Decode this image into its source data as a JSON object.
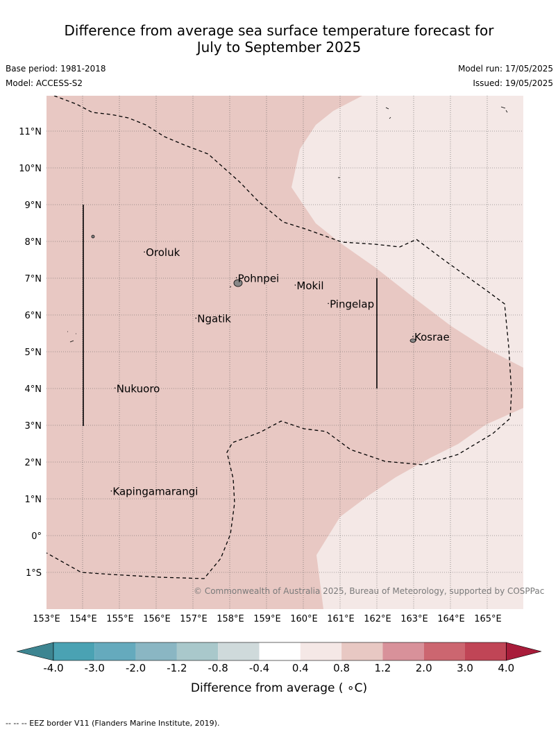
{
  "title": {
    "line1": "Difference from average sea surface temperature forecast for",
    "line2": "July to September 2025"
  },
  "meta": {
    "base_period": "Base period: 1981-2018",
    "model": "Model: ACCESS-S2",
    "model_run": "Model run: 17/05/2025",
    "issued": "Issued: 19/05/2025"
  },
  "map": {
    "lon_ticks": [
      "153°E",
      "154°E",
      "155°E",
      "156°E",
      "157°E",
      "158°E",
      "159°E",
      "160°E",
      "161°E",
      "162°E",
      "163°E",
      "164°E",
      "165°E"
    ],
    "lat_ticks": [
      "11°N",
      "10°N",
      "9°N",
      "8°N",
      "7°N",
      "6°N",
      "5°N",
      "4°N",
      "3°N",
      "2°N",
      "1°N",
      "0°",
      "1°S"
    ],
    "places": [
      {
        "name": "Oroluk",
        "lon": 155.7,
        "lat": 7.6
      },
      {
        "name": "Pohnpei",
        "lon": 158.2,
        "lat": 6.9
      },
      {
        "name": "Mokil",
        "lon": 159.8,
        "lat": 6.7
      },
      {
        "name": "Pingelap",
        "lon": 160.7,
        "lat": 6.2
      },
      {
        "name": "Ngatik",
        "lon": 157.1,
        "lat": 5.8
      },
      {
        "name": "Kosrae",
        "lon": 163.0,
        "lat": 5.3
      },
      {
        "name": "Nukuoro",
        "lon": 154.9,
        "lat": 3.9
      },
      {
        "name": "Kapingamarangi",
        "lon": 154.8,
        "lat": 1.1
      }
    ],
    "credit": "© Commonwealth of Australia 2025, Bureau of Meteorology, supported by COSPPac",
    "colors": {
      "band_0.8_1.2": "#e8c8c3",
      "band_0.4_0.8": "#f4e8e6",
      "land": "#888888"
    }
  },
  "colorbar": {
    "ticks": [
      "-4.0",
      "-3.0",
      "-2.0",
      "-1.2",
      "-0.8",
      "-0.4",
      "0.4",
      "0.8",
      "1.2",
      "2.0",
      "3.0",
      "4.0"
    ],
    "colors": [
      "#3d8591",
      "#4aa2b3",
      "#65aabd",
      "#8ab6c3",
      "#a9c8cb",
      "#cfdadb",
      "#ffffff",
      "#f5e8e6",
      "#e8c8c3",
      "#d8919a",
      "#cc6670",
      "#c04556",
      "#a81c3a"
    ],
    "label": "Difference from average ( ∘C)"
  },
  "footnote": "-- -- -- EEZ border V11 (Flanders Marine Institute, 2019)."
}
